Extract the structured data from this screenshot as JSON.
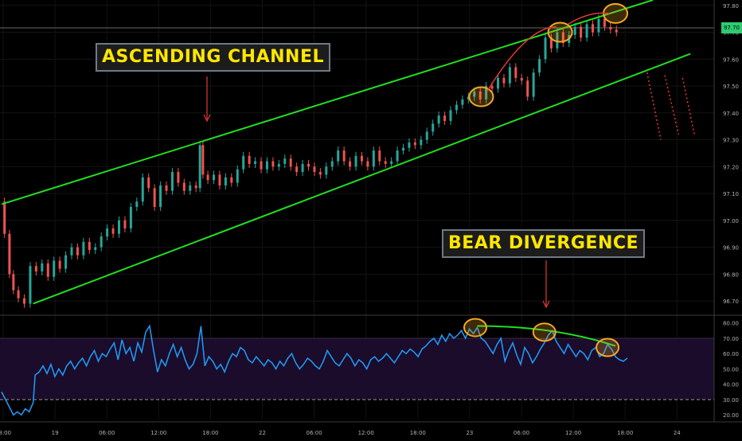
{
  "annotations": {
    "channel_label": "ASCENDING CHANNEL",
    "divergence_label": "BEAR DIVERGENCE"
  },
  "price_axis": {
    "ticks": [
      "97.80",
      "97.70",
      "97.60",
      "97.50",
      "97.40",
      "97.30",
      "97.20",
      "97.10",
      "97.00",
      "96.90",
      "96.80",
      "96.70"
    ],
    "current_price": "97.70"
  },
  "rsi_axis": {
    "ticks": [
      "80.00",
      "70.00",
      "60.00",
      "50.00",
      "40.00",
      "30.00",
      "20.00"
    ]
  },
  "time_axis": {
    "ticks": [
      "18:00",
      "19",
      "06:00",
      "12:00",
      "18:00",
      "22",
      "06:00",
      "12:00",
      "18:00",
      "23",
      "06:00",
      "12:00",
      "18:00",
      "24"
    ]
  },
  "colors": {
    "background": "#000000",
    "up_candle": "#26a69a",
    "down_candle": "#ef5350",
    "channel": "#22dd22",
    "rsi_line": "#2196f3",
    "rsi_band": "#1a0c2a",
    "annotation_text": "#ffe600",
    "highlight_circle": "#f5a623",
    "projection": "#e53935"
  },
  "chart_data": [
    {
      "type": "candlestick",
      "ylim": [
        96.65,
        97.82
      ],
      "channel": {
        "upper": [
          [
            0,
            97.06
          ],
          [
            330,
            97.82
          ]
        ],
        "lower": [
          [
            16,
            96.69
          ],
          [
            349,
            97.62
          ]
        ]
      },
      "close_series": [
        [
          0,
          97.07
        ],
        [
          3,
          96.95
        ],
        [
          5,
          96.8
        ],
        [
          7,
          96.74
        ],
        [
          10,
          96.71
        ],
        [
          13,
          96.69
        ],
        [
          16,
          96.83
        ],
        [
          19,
          96.81
        ],
        [
          22,
          96.84
        ],
        [
          25,
          96.79
        ],
        [
          28,
          96.85
        ],
        [
          31,
          96.82
        ],
        [
          34,
          96.87
        ],
        [
          37,
          96.9
        ],
        [
          40,
          96.87
        ],
        [
          43,
          96.92
        ],
        [
          46,
          96.89
        ],
        [
          49,
          96.9
        ],
        [
          52,
          96.94
        ],
        [
          55,
          96.97
        ],
        [
          58,
          96.95
        ],
        [
          61,
          97.0
        ],
        [
          64,
          96.97
        ],
        [
          67,
          97.05
        ],
        [
          70,
          97.07
        ],
        [
          73,
          97.16
        ],
        [
          76,
          97.12
        ],
        [
          79,
          97.05
        ],
        [
          82,
          97.13
        ],
        [
          85,
          97.11
        ],
        [
          88,
          97.18
        ],
        [
          91,
          97.14
        ],
        [
          94,
          97.11
        ],
        [
          97,
          97.13
        ],
        [
          100,
          97.12
        ],
        [
          101,
          97.28
        ],
        [
          103,
          97.17
        ],
        [
          106,
          97.15
        ],
        [
          109,
          97.17
        ],
        [
          112,
          97.13
        ],
        [
          115,
          97.16
        ],
        [
          118,
          97.14
        ],
        [
          121,
          97.19
        ],
        [
          124,
          97.24
        ],
        [
          127,
          97.21
        ],
        [
          130,
          97.22
        ],
        [
          133,
          97.19
        ],
        [
          136,
          97.22
        ],
        [
          139,
          97.2
        ],
        [
          142,
          97.21
        ],
        [
          145,
          97.23
        ],
        [
          148,
          97.2
        ],
        [
          151,
          97.18
        ],
        [
          154,
          97.21
        ],
        [
          157,
          97.2
        ],
        [
          160,
          97.18
        ],
        [
          163,
          97.17
        ],
        [
          166,
          97.2
        ],
        [
          169,
          97.22
        ],
        [
          172,
          97.26
        ],
        [
          175,
          97.22
        ],
        [
          178,
          97.2
        ],
        [
          181,
          97.24
        ],
        [
          184,
          97.22
        ],
        [
          187,
          97.2
        ],
        [
          190,
          97.26
        ],
        [
          193,
          97.22
        ],
        [
          196,
          97.21
        ],
        [
          199,
          97.22
        ],
        [
          202,
          97.26
        ],
        [
          205,
          97.27
        ],
        [
          208,
          97.29
        ],
        [
          211,
          97.28
        ],
        [
          214,
          97.3
        ],
        [
          217,
          97.33
        ],
        [
          220,
          97.36
        ],
        [
          223,
          97.39
        ],
        [
          226,
          97.37
        ],
        [
          229,
          97.41
        ],
        [
          232,
          97.43
        ],
        [
          235,
          97.45
        ],
        [
          238,
          97.46
        ],
        [
          241,
          97.48
        ],
        [
          244,
          97.45
        ],
        [
          247,
          97.5
        ],
        [
          250,
          97.49
        ],
        [
          253,
          97.53
        ],
        [
          256,
          97.51
        ],
        [
          259,
          97.57
        ],
        [
          262,
          97.53
        ],
        [
          265,
          97.52
        ],
        [
          268,
          97.46
        ],
        [
          271,
          97.55
        ],
        [
          274,
          97.6
        ],
        [
          277,
          97.68
        ],
        [
          280,
          97.64
        ],
        [
          283,
          97.7
        ],
        [
          286,
          97.66
        ],
        [
          289,
          97.69
        ],
        [
          292,
          97.72
        ],
        [
          295,
          97.68
        ],
        [
          298,
          97.73
        ],
        [
          301,
          97.7
        ],
        [
          304,
          97.75
        ],
        [
          307,
          97.72
        ],
        [
          310,
          97.71
        ],
        [
          313,
          97.7
        ]
      ],
      "projection_paths": [
        [
          [
            327,
            97.55
          ],
          [
            334,
            97.3
          ]
        ],
        [
          [
            336,
            97.54
          ],
          [
            343,
            97.32
          ]
        ],
        [
          [
            345,
            97.53
          ],
          [
            351,
            97.32
          ]
        ]
      ]
    },
    {
      "type": "line",
      "ylim": [
        17,
        84
      ],
      "guides": [
        70,
        30
      ],
      "series": [
        {
          "values": [
            [
              0,
              35
            ],
            [
              2,
              30
            ],
            [
              4,
              25
            ],
            [
              6,
              20
            ],
            [
              8,
              22
            ],
            [
              10,
              20
            ],
            [
              12,
              24
            ],
            [
              14,
              22
            ],
            [
              16,
              28
            ],
            [
              17,
              46
            ],
            [
              19,
              48
            ],
            [
              21,
              52
            ],
            [
              23,
              47
            ],
            [
              25,
              53
            ],
            [
              27,
              45
            ],
            [
              29,
              50
            ],
            [
              31,
              46
            ],
            [
              33,
              52
            ],
            [
              35,
              55
            ],
            [
              37,
              50
            ],
            [
              39,
              54
            ],
            [
              41,
              57
            ],
            [
              43,
              52
            ],
            [
              45,
              58
            ],
            [
              47,
              62
            ],
            [
              49,
              55
            ],
            [
              51,
              60
            ],
            [
              53,
              58
            ],
            [
              55,
              63
            ],
            [
              57,
              67
            ],
            [
              59,
              56
            ],
            [
              61,
              69
            ],
            [
              63,
              60
            ],
            [
              65,
              64
            ],
            [
              67,
              55
            ],
            [
              69,
              67
            ],
            [
              71,
              61
            ],
            [
              73,
              74
            ],
            [
              75,
              78
            ],
            [
              77,
              62
            ],
            [
              79,
              48
            ],
            [
              81,
              56
            ],
            [
              83,
              52
            ],
            [
              85,
              60
            ],
            [
              87,
              66
            ],
            [
              89,
              58
            ],
            [
              91,
              64
            ],
            [
              93,
              56
            ],
            [
              95,
              50
            ],
            [
              97,
              53
            ],
            [
              99,
              60
            ],
            [
              101,
              78
            ],
            [
              103,
              52
            ],
            [
              105,
              58
            ],
            [
              107,
              55
            ],
            [
              109,
              50
            ],
            [
              111,
              53
            ],
            [
              113,
              48
            ],
            [
              115,
              55
            ],
            [
              117,
              60
            ],
            [
              119,
              58
            ],
            [
              121,
              64
            ],
            [
              123,
              62
            ],
            [
              125,
              56
            ],
            [
              127,
              54
            ],
            [
              129,
              58
            ],
            [
              131,
              55
            ],
            [
              133,
              52
            ],
            [
              135,
              56
            ],
            [
              137,
              54
            ],
            [
              139,
              50
            ],
            [
              141,
              55
            ],
            [
              143,
              52
            ],
            [
              145,
              57
            ],
            [
              147,
              60
            ],
            [
              149,
              54
            ],
            [
              151,
              50
            ],
            [
              153,
              53
            ],
            [
              155,
              57
            ],
            [
              157,
              55
            ],
            [
              159,
              52
            ],
            [
              161,
              50
            ],
            [
              163,
              55
            ],
            [
              165,
              62
            ],
            [
              167,
              58
            ],
            [
              169,
              54
            ],
            [
              171,
              52
            ],
            [
              173,
              56
            ],
            [
              175,
              60
            ],
            [
              177,
              57
            ],
            [
              179,
              52
            ],
            [
              181,
              56
            ],
            [
              183,
              54
            ],
            [
              185,
              50
            ],
            [
              187,
              56
            ],
            [
              189,
              58
            ],
            [
              191,
              55
            ],
            [
              193,
              57
            ],
            [
              195,
              60
            ],
            [
              197,
              57
            ],
            [
              199,
              54
            ],
            [
              201,
              58
            ],
            [
              203,
              62
            ],
            [
              205,
              60
            ],
            [
              207,
              63
            ],
            [
              209,
              61
            ],
            [
              211,
              58
            ],
            [
              213,
              63
            ],
            [
              215,
              65
            ],
            [
              217,
              68
            ],
            [
              219,
              70
            ],
            [
              221,
              66
            ],
            [
              223,
              72
            ],
            [
              225,
              68
            ],
            [
              227,
              73
            ],
            [
              229,
              70
            ],
            [
              231,
              72
            ],
            [
              233,
              75
            ],
            [
              235,
              70
            ],
            [
              237,
              76
            ],
            [
              239,
              73
            ],
            [
              241,
              77
            ],
            [
              243,
              70
            ],
            [
              245,
              68
            ],
            [
              247,
              64
            ],
            [
              249,
              60
            ],
            [
              251,
              66
            ],
            [
              253,
              70
            ],
            [
              255,
              55
            ],
            [
              257,
              62
            ],
            [
              259,
              67
            ],
            [
              261,
              59
            ],
            [
              263,
              53
            ],
            [
              265,
              64
            ],
            [
              267,
              60
            ],
            [
              269,
              54
            ],
            [
              271,
              58
            ],
            [
              273,
              63
            ],
            [
              275,
              67
            ],
            [
              277,
              72
            ],
            [
              279,
              75
            ],
            [
              281,
              68
            ],
            [
              283,
              64
            ],
            [
              285,
              60
            ],
            [
              287,
              66
            ],
            [
              289,
              62
            ],
            [
              291,
              58
            ],
            [
              293,
              62
            ],
            [
              295,
              60
            ],
            [
              297,
              56
            ],
            [
              299,
              62
            ],
            [
              301,
              64
            ],
            [
              303,
              58
            ],
            [
              305,
              60
            ],
            [
              307,
              66
            ],
            [
              309,
              63
            ],
            [
              311,
              58
            ],
            [
              313,
              56
            ],
            [
              315,
              55
            ],
            [
              317,
              57
            ]
          ]
        }
      ],
      "divergence_line": [
        [
          241,
          78
        ],
        [
          311,
          65
        ]
      ],
      "highlights": [
        [
          240,
          77
        ],
        [
          275,
          74
        ],
        [
          307,
          64
        ]
      ]
    }
  ]
}
